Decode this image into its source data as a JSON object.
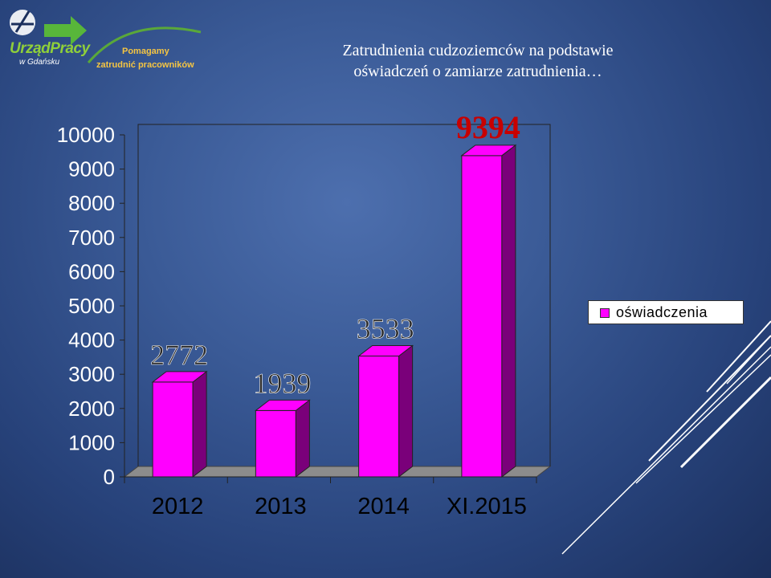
{
  "logo": {
    "org": "UrządPracy",
    "sub": "w Gdańsku",
    "tag_line1": "Pomagamy",
    "tag_line2": "zatrudnić pracowników"
  },
  "title_lines": [
    "Zatrudnienia cudzoziemców na podstawie",
    "oświadczeń o zamiarze zatrudnienia…"
  ],
  "colors": {
    "bar_front": "#ff00ff",
    "bar_side": "#7a007a",
    "bar_top": "#ff00ff",
    "floor": "#8c8c8c"
  },
  "chart_data": {
    "type": "bar",
    "categories": [
      "2012",
      "2013",
      "2014",
      "XI.2015"
    ],
    "series": [
      {
        "name": "oświadczenia",
        "values": [
          2772,
          1939,
          3533,
          9394
        ]
      }
    ],
    "data_labels": [
      "2772",
      "1939",
      "3533",
      "9394"
    ],
    "y_ticks": [
      "0",
      "1000",
      "2000",
      "3000",
      "4000",
      "5000",
      "6000",
      "7000",
      "8000",
      "9000",
      "10000"
    ],
    "ylim": [
      0,
      10000
    ],
    "grid": false,
    "legend_position": "right"
  }
}
